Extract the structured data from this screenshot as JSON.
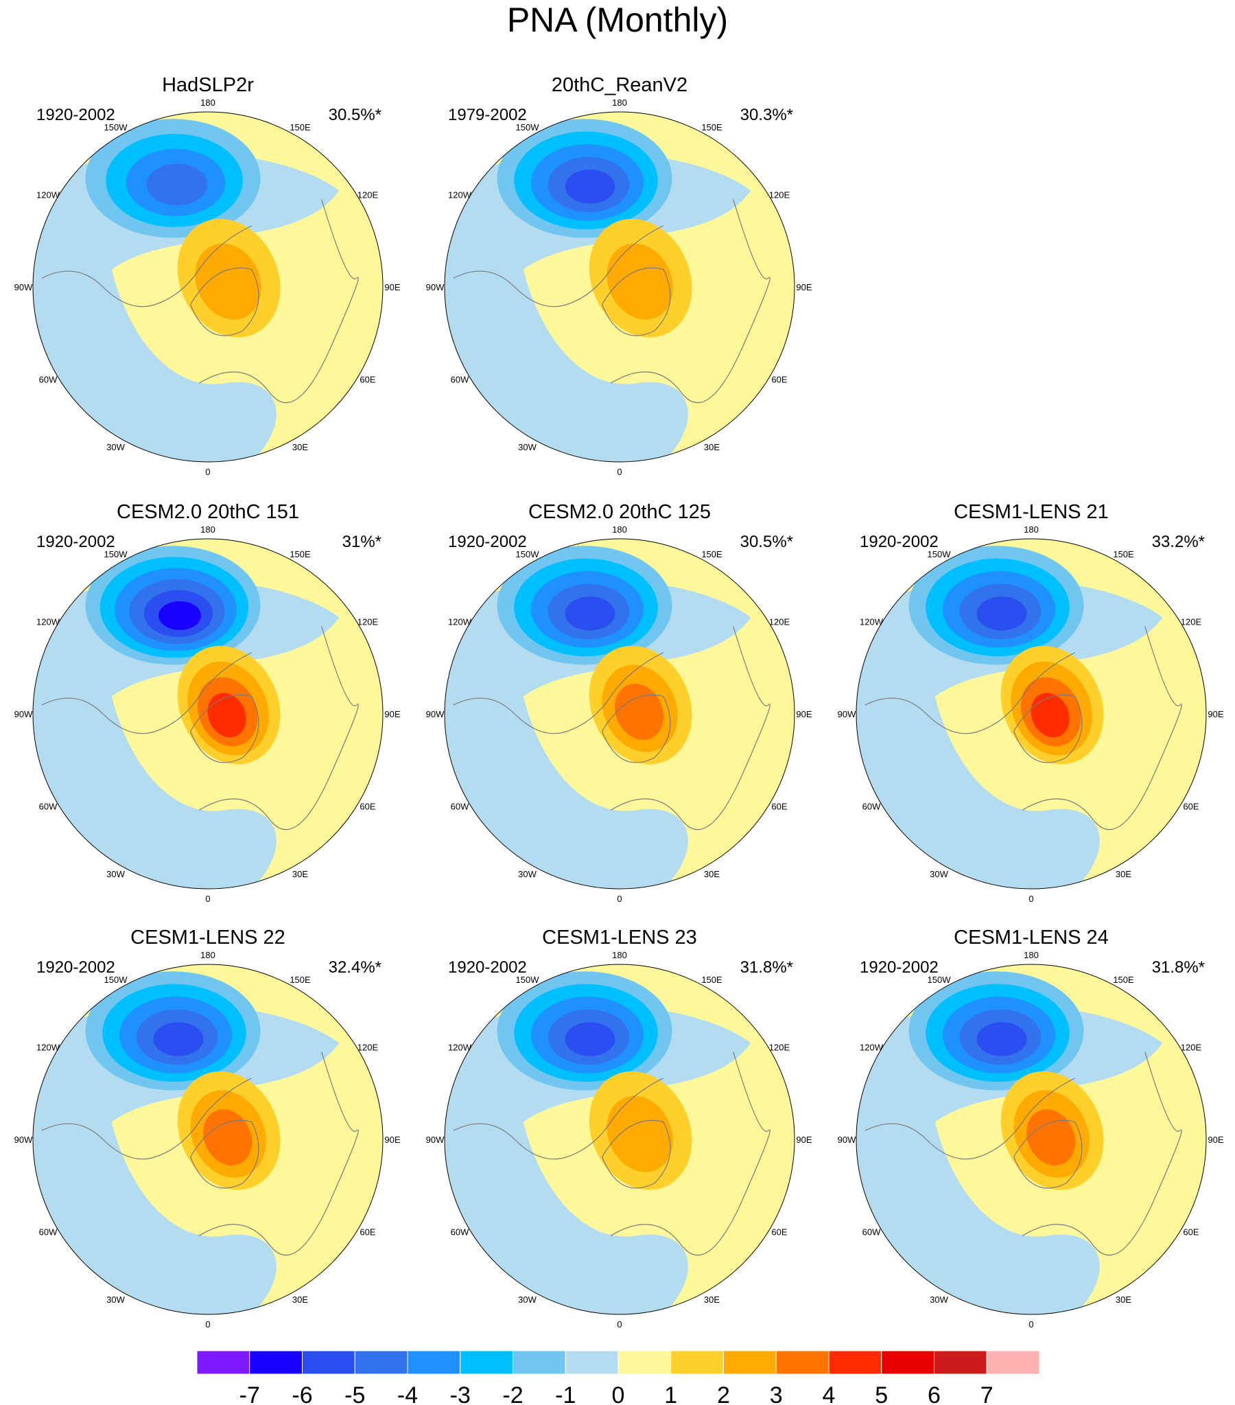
{
  "title": "PNA (Monthly)",
  "colors": {
    "levels": [
      "#7f1aff",
      "#1a00ff",
      "#2a4ef0",
      "#3372ed",
      "#1e90ff",
      "#00bfff",
      "#71c6f0",
      "#b4dcf0",
      "#fff89a",
      "#ffd02b",
      "#ffaa00",
      "#ff7300",
      "#ff2c00",
      "#e50000",
      "#cc1b1b",
      "#ffb2b2"
    ],
    "land_outline": "#7a7a7a",
    "panel_border": "#000000"
  },
  "colorbar": {
    "ticks": [
      "-7",
      "-6",
      "-5",
      "-4",
      "-3",
      "-2",
      "-1",
      "0",
      "1",
      "2",
      "3",
      "4",
      "5",
      "6",
      "7"
    ]
  },
  "longitude_labels": [
    "180",
    "150W",
    "150E",
    "120W",
    "120E",
    "90W",
    "90E",
    "60W",
    "60E",
    "30W",
    "30E",
    "0"
  ],
  "chart_data": [
    {
      "type": "heatmap",
      "title": "HadSLP2r",
      "period": "1920-2002",
      "variance": "30.5%*",
      "low_min": -4,
      "high_max": 2,
      "low_dir": -0.2,
      "high_dir": 1.2,
      "has_panel": true
    },
    {
      "type": "heatmap",
      "title": "20thC_ReanV2",
      "period": "1979-2002",
      "variance": "30.3%*",
      "low_min": -5,
      "high_max": 2,
      "low_dir": -0.25,
      "high_dir": 1.4,
      "has_panel": true
    },
    {
      "type": "heatmap",
      "title": "CESM2.0 20thC 151",
      "period": "1920-2002",
      "variance": "31%*",
      "low_min": -6,
      "high_max": 4,
      "low_dir": -0.15,
      "high_dir": 1.3,
      "has_panel": true
    },
    {
      "type": "heatmap",
      "title": "CESM2.0 20thC 125",
      "period": "1920-2002",
      "variance": "30.5%*",
      "low_min": -5,
      "high_max": 3,
      "low_dir": -0.2,
      "high_dir": 1.35,
      "has_panel": true
    },
    {
      "type": "heatmap",
      "title": "CESM1-LENS 21",
      "period": "1920-2002",
      "variance": "33.2%*",
      "low_min": -5,
      "high_max": 4,
      "low_dir": -0.1,
      "high_dir": 1.3,
      "has_panel": true
    },
    {
      "type": "heatmap",
      "title": "CESM1-LENS 22",
      "period": "1920-2002",
      "variance": "32.4%*",
      "low_min": -5,
      "high_max": 3,
      "low_dir": -0.2,
      "high_dir": 1.3,
      "has_panel": true
    },
    {
      "type": "heatmap",
      "title": "CESM1-LENS 23",
      "period": "1920-2002",
      "variance": "31.8%*",
      "low_min": -5,
      "high_max": 2,
      "low_dir": -0.2,
      "high_dir": 1.35,
      "has_panel": true
    },
    {
      "type": "heatmap",
      "title": "CESM1-LENS 24",
      "period": "1920-2002",
      "variance": "31.8%*",
      "low_min": -5,
      "high_max": 3,
      "low_dir": -0.15,
      "high_dir": 1.3,
      "has_panel": true
    }
  ]
}
